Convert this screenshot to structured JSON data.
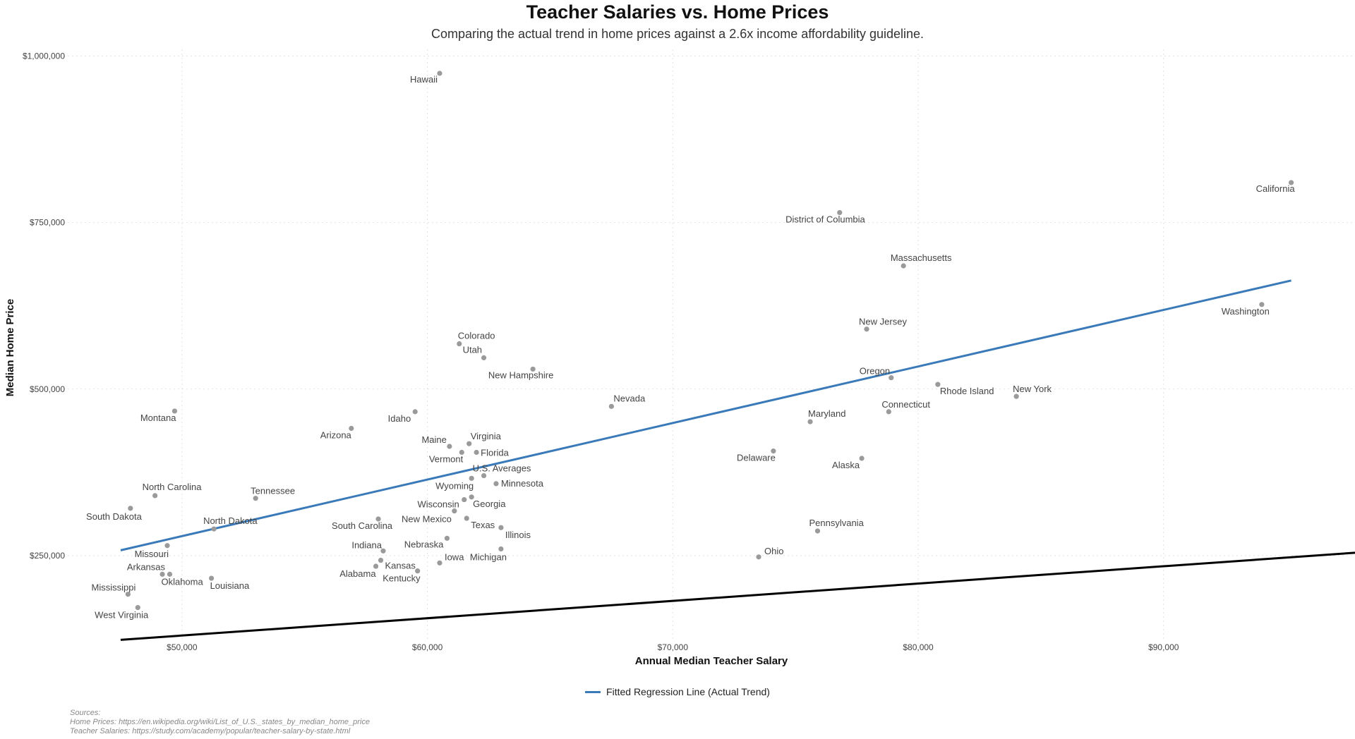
{
  "chart_data": {
    "type": "scatter",
    "title": "Teacher Salaries vs. Home Prices",
    "subtitle": "Comparing the actual trend in home prices against a 2.6x income affordability guideline.",
    "xlabel": "Annual Median Teacher Salary",
    "ylabel": "Median Home Price",
    "xlim": [
      45000,
      97800
    ],
    "ylim": [
      125000,
      1010000
    ],
    "x_ticks": [
      50000,
      60000,
      70000,
      80000,
      90000
    ],
    "x_tick_labels": [
      "$50,000",
      "$60,000",
      "$70,000",
      "$80,000",
      "$90,000"
    ],
    "y_ticks": [
      250000,
      500000,
      750000,
      1000000
    ],
    "y_tick_labels": [
      "$250,000",
      "$500,000",
      "$750,000",
      "$1,000,000"
    ],
    "grid": true,
    "legend_placement": "bottom",
    "colors": {
      "points": "#9a9a9a",
      "regression": "#3a7ab8",
      "guideline": "#000000"
    },
    "series": [
      {
        "name": "Fitted Regression Line (Actual Trend)",
        "type": "line",
        "x": [
          47500,
          95200
        ],
        "y": [
          258000,
          663000
        ]
      },
      {
        "type": "line",
        "x": [
          47500,
          97800
        ],
        "y": [
          123500,
          254300
        ]
      }
    ],
    "points": [
      {
        "label": "Hawaii",
        "x": 60500,
        "y": 974000,
        "dx": -3,
        "dy": 13,
        "anchor": "end"
      },
      {
        "label": "California",
        "x": 95200,
        "y": 810000,
        "dx": 5,
        "dy": 13,
        "anchor": "end"
      },
      {
        "label": "District of Columbia",
        "x": 76800,
        "y": 765000,
        "dx": 36,
        "dy": 14,
        "anchor": "end"
      },
      {
        "label": "Massachusetts",
        "x": 79400,
        "y": 685000,
        "dx": 25,
        "dy": -7,
        "anchor": "middle"
      },
      {
        "label": "Washington",
        "x": 94000,
        "y": 627000,
        "dx": 11,
        "dy": 14,
        "anchor": "end"
      },
      {
        "label": "New Jersey",
        "x": 77900,
        "y": 590000,
        "dx": 23,
        "dy": -6,
        "anchor": "middle"
      },
      {
        "label": "Colorado",
        "x": 61300,
        "y": 568000,
        "dx": -2,
        "dy": -7,
        "anchor": "start"
      },
      {
        "label": "Utah",
        "x": 62300,
        "y": 547000,
        "dx": -30,
        "dy": -7,
        "anchor": "start"
      },
      {
        "label": "New Hampshire",
        "x": 64300,
        "y": 530000,
        "dx": -17,
        "dy": 13,
        "anchor": "middle"
      },
      {
        "label": "Oregon",
        "x": 78900,
        "y": 517000,
        "dx": -45,
        "dy": -5,
        "anchor": "start"
      },
      {
        "label": "Rhode Island",
        "x": 80800,
        "y": 507000,
        "dx": 3,
        "dy": 14,
        "anchor": "start"
      },
      {
        "label": "New York",
        "x": 84000,
        "y": 489000,
        "dx": -5,
        "dy": -6,
        "anchor": "start"
      },
      {
        "label": "Nevada",
        "x": 67500,
        "y": 474000,
        "dx": 3,
        "dy": -7,
        "anchor": "start"
      },
      {
        "label": "Connecticut",
        "x": 78800,
        "y": 466000,
        "dx": -10,
        "dy": -6,
        "anchor": "start"
      },
      {
        "label": "Montana",
        "x": 49700,
        "y": 467000,
        "dx": 2,
        "dy": 14,
        "anchor": "end"
      },
      {
        "label": "Idaho",
        "x": 59500,
        "y": 466000,
        "dx": -6,
        "dy": 14,
        "anchor": "end"
      },
      {
        "label": "Maryland",
        "x": 75600,
        "y": 451000,
        "dx": -3,
        "dy": -7,
        "anchor": "start"
      },
      {
        "label": "Arizona",
        "x": 56900,
        "y": 441000,
        "dx": 0,
        "dy": 14,
        "anchor": "end"
      },
      {
        "label": "Maine",
        "x": 60900,
        "y": 414000,
        "dx": -4,
        "dy": -5,
        "anchor": "end"
      },
      {
        "label": "Virginia",
        "x": 61700,
        "y": 418000,
        "dx": 2,
        "dy": -6,
        "anchor": "start"
      },
      {
        "label": "Florida",
        "x": 62000,
        "y": 405000,
        "dx": 6,
        "dy": 5,
        "anchor": "start"
      },
      {
        "label": "Vermont",
        "x": 61400,
        "y": 405000,
        "dx": 2,
        "dy": 14,
        "anchor": "end"
      },
      {
        "label": "Delaware",
        "x": 74100,
        "y": 407000,
        "dx": 3,
        "dy": 14,
        "anchor": "end"
      },
      {
        "label": "Alaska",
        "x": 77700,
        "y": 396000,
        "dx": -3,
        "dy": 14,
        "anchor": "end"
      },
      {
        "label": "U.S. Averages",
        "x": 62300,
        "y": 370000,
        "dx": -16,
        "dy": -6,
        "anchor": "start"
      },
      {
        "label": "Wyoming",
        "x": 61800,
        "y": 366000,
        "dx": 3,
        "dy": 15,
        "anchor": "end"
      },
      {
        "label": "Minnesota",
        "x": 62800,
        "y": 358000,
        "dx": 7,
        "dy": 4,
        "anchor": "start"
      },
      {
        "label": "North Carolina",
        "x": 48900,
        "y": 340000,
        "dx": -18,
        "dy": -8,
        "anchor": "start"
      },
      {
        "label": "Tennessee",
        "x": 53000,
        "y": 336000,
        "dx": -7,
        "dy": -6,
        "anchor": "start"
      },
      {
        "label": "Georgia",
        "x": 61800,
        "y": 338000,
        "dx": 2,
        "dy": 14,
        "anchor": "start"
      },
      {
        "label": "Wisconsin",
        "x": 61500,
        "y": 334000,
        "dx": -7,
        "dy": 11,
        "anchor": "end"
      },
      {
        "label": "South Dakota",
        "x": 47900,
        "y": 321000,
        "dx": 16,
        "dy": 16,
        "anchor": "end"
      },
      {
        "label": "New Mexico",
        "x": 61100,
        "y": 317000,
        "dx": -4,
        "dy": 16,
        "anchor": "end"
      },
      {
        "label": "South Carolina",
        "x": 58000,
        "y": 305000,
        "dx": 20,
        "dy": 14,
        "anchor": "end"
      },
      {
        "label": "Texas",
        "x": 61600,
        "y": 306000,
        "dx": 6,
        "dy": 14,
        "anchor": "start"
      },
      {
        "label": "North Dakota",
        "x": 51300,
        "y": 290000,
        "dx": -15,
        "dy": -7,
        "anchor": "start"
      },
      {
        "label": "Illinois",
        "x": 63000,
        "y": 292000,
        "dx": 6,
        "dy": 15,
        "anchor": "start"
      },
      {
        "label": "Nebraska",
        "x": 60800,
        "y": 276000,
        "dx": -5,
        "dy": 13,
        "anchor": "end"
      },
      {
        "label": "Pennsylvania",
        "x": 75900,
        "y": 287000,
        "dx": -12,
        "dy": -7,
        "anchor": "start"
      },
      {
        "label": "Missouri",
        "x": 49400,
        "y": 265000,
        "dx": 2,
        "dy": 16,
        "anchor": "end"
      },
      {
        "label": "Indiana",
        "x": 58200,
        "y": 257000,
        "dx": -2,
        "dy": -4,
        "anchor": "end"
      },
      {
        "label": "Michigan",
        "x": 63000,
        "y": 260000,
        "dx": -44,
        "dy": 16,
        "anchor": "start"
      },
      {
        "label": "Iowa",
        "x": 60500,
        "y": 239000,
        "dx": 7,
        "dy": -4,
        "anchor": "start"
      },
      {
        "label": "Kansas",
        "x": 58100,
        "y": 243000,
        "dx": 6,
        "dy": 12,
        "anchor": "start"
      },
      {
        "label": "Ohio",
        "x": 73500,
        "y": 248000,
        "dx": 8,
        "dy": -4,
        "anchor": "start"
      },
      {
        "label": "Arkansas",
        "x": 49200,
        "y": 222000,
        "dx": 4,
        "dy": -6,
        "anchor": "end"
      },
      {
        "label": "Oklahoma",
        "x": 49500,
        "y": 222000,
        "dx": -12,
        "dy": 15,
        "anchor": "start"
      },
      {
        "label": "Alabama",
        "x": 57900,
        "y": 234000,
        "dx": 0,
        "dy": 15,
        "anchor": "end"
      },
      {
        "label": "Kentucky",
        "x": 59600,
        "y": 227000,
        "dx": 4,
        "dy": 15,
        "anchor": "end"
      },
      {
        "label": "Louisiana",
        "x": 51200,
        "y": 216000,
        "dx": -2,
        "dy": 15,
        "anchor": "start"
      },
      {
        "label": "Mississippi",
        "x": 47800,
        "y": 192000,
        "dx": 11,
        "dy": -5,
        "anchor": "end"
      },
      {
        "label": "West Virginia",
        "x": 48200,
        "y": 172000,
        "dx": 15,
        "dy": 15,
        "anchor": "end"
      }
    ]
  },
  "legend": {
    "label": "Fitted Regression Line (Actual Trend)"
  },
  "sources": {
    "heading": "Sources:",
    "home_prices": "Home Prices: https://en.wikipedia.org/wiki/List_of_U.S._states_by_median_home_price",
    "teacher_salaries": "Teacher Salaries: https://study.com/academy/popular/teacher-salary-by-state.html"
  }
}
